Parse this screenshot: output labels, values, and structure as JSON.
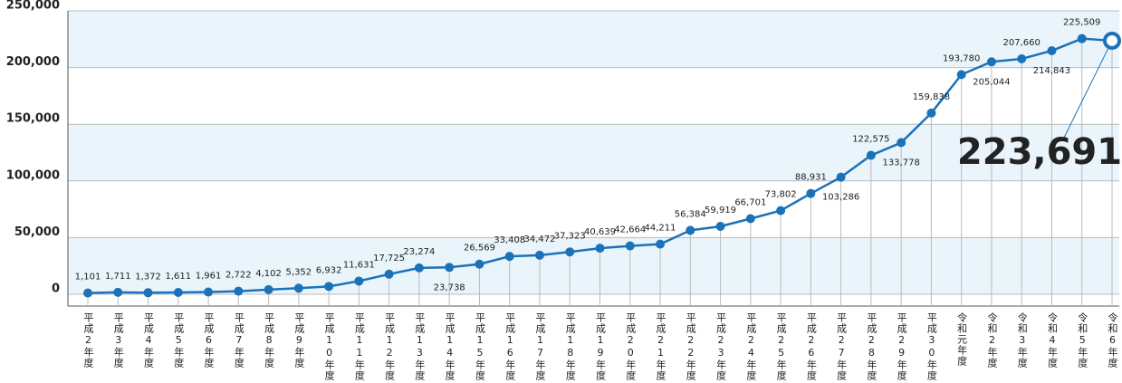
{
  "chart_data": {
    "type": "line",
    "categories": [
      "平成2年度",
      "平成3年度",
      "平成4年度",
      "平成5年度",
      "平成6年度",
      "平成7年度",
      "平成8年度",
      "平成9年度",
      "平成10年度",
      "平成11年度",
      "平成12年度",
      "平成13年度",
      "平成14年度",
      "平成15年度",
      "平成16年度",
      "平成17年度",
      "平成18年度",
      "平成19年度",
      "平成20年度",
      "平成21年度",
      "平成22年度",
      "平成23年度",
      "平成24年度",
      "平成25年度",
      "平成26年度",
      "平成27年度",
      "平成28年度",
      "平成29年度",
      "平成30年度",
      "令和元年度",
      "令和2年度",
      "令和3年度",
      "令和4年度",
      "令和5年度",
      "令和6年度"
    ],
    "values": [
      1101,
      1711,
      1372,
      1611,
      1961,
      2722,
      4102,
      5352,
      6932,
      11631,
      17725,
      23274,
      23738,
      26569,
      33408,
      34472,
      37323,
      40639,
      42664,
      44211,
      56384,
      59919,
      66701,
      73802,
      88931,
      103286,
      122575,
      133778,
      159838,
      193780,
      205044,
      207660,
      214843,
      225509,
      223691
    ],
    "value_labels": [
      "1,101",
      "1,711",
      "1,372",
      "1,611",
      "1,961",
      "2,722",
      "4,102",
      "5,352",
      "6,932",
      "11,631",
      "17,725",
      "23,274",
      "23,738",
      "26,569",
      "33,408",
      "34,472",
      "37,323",
      "40,639",
      "42,664",
      "44,211",
      "56,384",
      "59,919",
      "66,701",
      "73,802",
      "88,931",
      "103,286",
      "122,575",
      "133,778",
      "159,838",
      "193,780",
      "205,044",
      "207,660",
      "214,843",
      "225,509",
      "223,691"
    ],
    "color": "#1b72b8",
    "ylim": [
      0,
      250000
    ],
    "yticks": [
      0,
      {
        "value": 50000,
        "label": "50,000"
      },
      {
        "value": 100000,
        "label": "100,000"
      },
      {
        "value": 150000,
        "label": "150,000"
      },
      {
        "value": 200000,
        "label": "200,000"
      },
      {
        "value": 250000,
        "label": "250,000"
      }
    ],
    "grid": true
  }
}
